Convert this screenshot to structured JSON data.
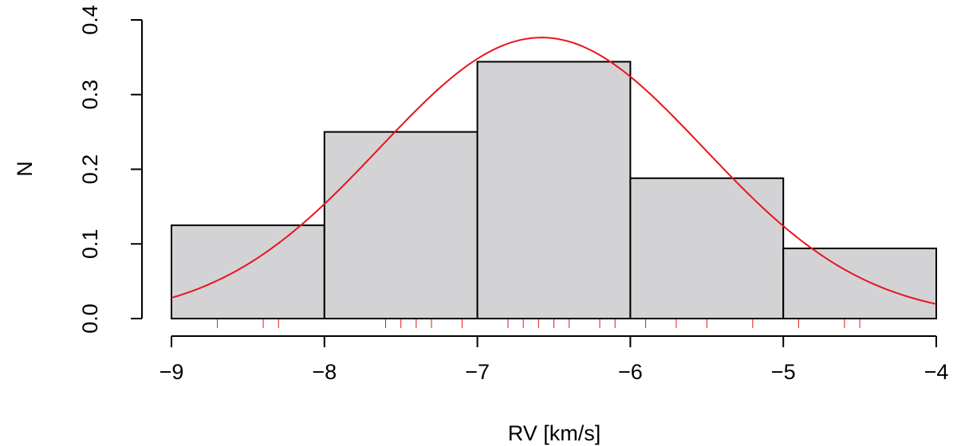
{
  "chart_data": {
    "type": "bar",
    "subtype": "histogram",
    "title": "",
    "xlabel": "RV [km/s]",
    "ylabel": "N",
    "xlim": [
      -9,
      -4
    ],
    "ylim": [
      0,
      0.4
    ],
    "x_ticks": [
      -9,
      -8,
      -7,
      -6,
      -5,
      -4
    ],
    "x_tick_labels": [
      "−9",
      "−8",
      "−7",
      "−6",
      "−5",
      "−4"
    ],
    "y_ticks": [
      0,
      0.1,
      0.2,
      0.3,
      0.4
    ],
    "y_tick_labels": [
      "0.0",
      "0.1",
      "0.2",
      "0.3",
      "0.4"
    ],
    "bins": [
      {
        "x0": -9,
        "x1": -8,
        "value": 0.125
      },
      {
        "x0": -8,
        "x1": -7,
        "value": 0.25
      },
      {
        "x0": -7,
        "x1": -6,
        "value": 0.344
      },
      {
        "x0": -6,
        "x1": -5,
        "value": 0.188
      },
      {
        "x0": -5,
        "x1": -4,
        "value": 0.094
      }
    ],
    "bar_fill": "#d3d3d6",
    "bar_stroke": "#000000",
    "fit_curve": {
      "type": "normal",
      "mean": -6.58,
      "sd": 1.06,
      "color": "#e8141e"
    },
    "rug": {
      "values": [
        -8.7,
        -8.4,
        -8.3,
        -7.6,
        -7.5,
        -7.4,
        -7.3,
        -7.1,
        -6.8,
        -6.7,
        -6.6,
        -6.5,
        -6.4,
        -6.2,
        -6.1,
        -5.9,
        -5.7,
        -5.5,
        -5.2,
        -4.9,
        -4.6,
        -4.5
      ],
      "color": "#e8141e"
    },
    "grid": false,
    "legend": "none"
  }
}
